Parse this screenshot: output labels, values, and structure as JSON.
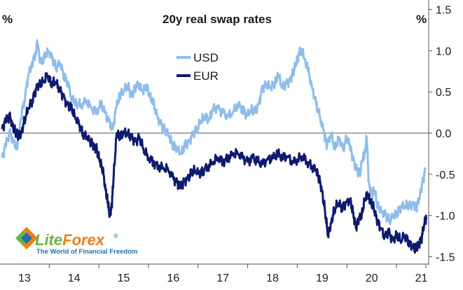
{
  "chart_data": {
    "type": "line",
    "title": "20y real swap rates",
    "y_unit_left": "%",
    "y_unit_right": "%",
    "ylim": [
      -1.55,
      1.55
    ],
    "y_ticks": [
      1.5,
      1.0,
      0.5,
      0.0,
      -0.5,
      -1.0,
      -1.5
    ],
    "y_tick_labels": [
      "1.5",
      "1.0",
      "0.5",
      "0.0",
      "-0.5",
      "-1.0",
      "-1.5"
    ],
    "x_range": [
      2012.55,
      2021.12
    ],
    "x_ticks": [
      2013,
      2014,
      2015,
      2016,
      2017,
      2018,
      2019,
      2020,
      2021
    ],
    "x_tick_labels": [
      "13",
      "14",
      "15",
      "16",
      "17",
      "18",
      "19",
      "20",
      "21"
    ],
    "zero_line": true,
    "legend": {
      "position": "top-center",
      "entries": [
        "USD",
        "EUR"
      ]
    },
    "series": [
      {
        "name": "USD",
        "color": "#8fbdeb",
        "points": [
          [
            2012.55,
            -0.3
          ],
          [
            2012.62,
            -0.15
          ],
          [
            2012.7,
            0.0
          ],
          [
            2012.78,
            -0.1
          ],
          [
            2012.85,
            -0.2
          ],
          [
            2012.92,
            0.15
          ],
          [
            2013.0,
            0.4
          ],
          [
            2013.08,
            0.7
          ],
          [
            2013.15,
            0.85
          ],
          [
            2013.22,
            0.95
          ],
          [
            2013.26,
            1.1
          ],
          [
            2013.32,
            0.85
          ],
          [
            2013.4,
            0.9
          ],
          [
            2013.48,
            1.0
          ],
          [
            2013.56,
            0.9
          ],
          [
            2013.64,
            0.8
          ],
          [
            2013.72,
            0.85
          ],
          [
            2013.8,
            0.7
          ],
          [
            2013.88,
            0.6
          ],
          [
            2013.96,
            0.4
          ],
          [
            2014.05,
            0.35
          ],
          [
            2014.15,
            0.35
          ],
          [
            2014.25,
            0.4
          ],
          [
            2014.35,
            0.3
          ],
          [
            2014.45,
            0.25
          ],
          [
            2014.55,
            0.35
          ],
          [
            2014.62,
            0.25
          ],
          [
            2014.7,
            0.15
          ],
          [
            2014.78,
            0.05
          ],
          [
            2014.85,
            0.3
          ],
          [
            2014.92,
            0.45
          ],
          [
            2015.0,
            0.5
          ],
          [
            2015.08,
            0.58
          ],
          [
            2015.16,
            0.45
          ],
          [
            2015.22,
            0.55
          ],
          [
            2015.3,
            0.6
          ],
          [
            2015.38,
            0.5
          ],
          [
            2015.46,
            0.58
          ],
          [
            2015.52,
            0.45
          ],
          [
            2015.6,
            0.35
          ],
          [
            2015.68,
            0.2
          ],
          [
            2015.76,
            0.1
          ],
          [
            2015.84,
            0.05
          ],
          [
            2015.92,
            -0.05
          ],
          [
            2016.0,
            -0.15
          ],
          [
            2016.08,
            -0.2
          ],
          [
            2016.16,
            -0.25
          ],
          [
            2016.24,
            -0.15
          ],
          [
            2016.32,
            -0.1
          ],
          [
            2016.4,
            0.0
          ],
          [
            2016.48,
            0.05
          ],
          [
            2016.56,
            0.15
          ],
          [
            2016.64,
            0.2
          ],
          [
            2016.72,
            0.15
          ],
          [
            2016.8,
            0.3
          ],
          [
            2016.9,
            0.3
          ],
          [
            2017.0,
            0.25
          ],
          [
            2017.1,
            0.2
          ],
          [
            2017.2,
            0.25
          ],
          [
            2017.3,
            0.35
          ],
          [
            2017.4,
            0.3
          ],
          [
            2017.48,
            0.2
          ],
          [
            2017.56,
            0.28
          ],
          [
            2017.64,
            0.25
          ],
          [
            2017.72,
            0.35
          ],
          [
            2017.8,
            0.55
          ],
          [
            2017.88,
            0.6
          ],
          [
            2017.96,
            0.55
          ],
          [
            2018.05,
            0.6
          ],
          [
            2018.12,
            0.7
          ],
          [
            2018.2,
            0.55
          ],
          [
            2018.28,
            0.6
          ],
          [
            2018.36,
            0.65
          ],
          [
            2018.42,
            0.75
          ],
          [
            2018.48,
            0.85
          ],
          [
            2018.53,
            0.95
          ],
          [
            2018.58,
            1.02
          ],
          [
            2018.65,
            0.9
          ],
          [
            2018.72,
            0.75
          ],
          [
            2018.8,
            0.55
          ],
          [
            2018.88,
            0.35
          ],
          [
            2018.96,
            0.2
          ],
          [
            2019.04,
            0.0
          ],
          [
            2019.1,
            -0.15
          ],
          [
            2019.18,
            0.0
          ],
          [
            2019.26,
            -0.2
          ],
          [
            2019.34,
            -0.05
          ],
          [
            2019.42,
            -0.2
          ],
          [
            2019.5,
            -0.05
          ],
          [
            2019.56,
            -0.15
          ],
          [
            2019.62,
            -0.3
          ],
          [
            2019.7,
            -0.45
          ],
          [
            2019.76,
            -0.5
          ],
          [
            2019.82,
            -0.3
          ],
          [
            2019.86,
            -0.25
          ],
          [
            2019.9,
            -0.05
          ],
          [
            2019.94,
            -0.6
          ],
          [
            2020.0,
            -0.75
          ],
          [
            2020.06,
            -0.7
          ],
          [
            2020.12,
            -0.9
          ],
          [
            2020.2,
            -0.95
          ],
          [
            2020.28,
            -1.0
          ],
          [
            2020.36,
            -1.05
          ],
          [
            2020.44,
            -1.0
          ],
          [
            2020.52,
            -0.95
          ],
          [
            2020.6,
            -0.9
          ],
          [
            2020.68,
            -0.88
          ],
          [
            2020.76,
            -0.9
          ],
          [
            2020.84,
            -0.85
          ],
          [
            2020.9,
            -0.9
          ],
          [
            2020.96,
            -0.8
          ],
          [
            2021.02,
            -0.6
          ],
          [
            2021.08,
            -0.45
          ]
        ]
      },
      {
        "name": "EUR",
        "color": "#0d1a6e",
        "points": [
          [
            2012.55,
            0.05
          ],
          [
            2012.62,
            0.15
          ],
          [
            2012.7,
            0.2
          ],
          [
            2012.76,
            0.1
          ],
          [
            2012.82,
            0.0
          ],
          [
            2012.88,
            -0.05
          ],
          [
            2012.94,
            0.0
          ],
          [
            2013.0,
            0.15
          ],
          [
            2013.08,
            0.3
          ],
          [
            2013.16,
            0.4
          ],
          [
            2013.24,
            0.55
          ],
          [
            2013.3,
            0.6
          ],
          [
            2013.38,
            0.62
          ],
          [
            2013.46,
            0.7
          ],
          [
            2013.54,
            0.6
          ],
          [
            2013.62,
            0.62
          ],
          [
            2013.7,
            0.55
          ],
          [
            2013.78,
            0.45
          ],
          [
            2013.86,
            0.35
          ],
          [
            2013.94,
            0.3
          ],
          [
            2014.02,
            0.2
          ],
          [
            2014.1,
            0.1
          ],
          [
            2014.18,
            0.0
          ],
          [
            2014.26,
            -0.05
          ],
          [
            2014.34,
            -0.1
          ],
          [
            2014.4,
            -0.15
          ],
          [
            2014.46,
            -0.2
          ],
          [
            2014.52,
            -0.35
          ],
          [
            2014.58,
            -0.45
          ],
          [
            2014.64,
            -0.7
          ],
          [
            2014.68,
            -0.85
          ],
          [
            2014.72,
            -1.0
          ],
          [
            2014.76,
            -0.9
          ],
          [
            2014.8,
            -0.5
          ],
          [
            2014.86,
            0.0
          ],
          [
            2014.92,
            -0.05
          ],
          [
            2015.0,
            0.0
          ],
          [
            2015.08,
            0.0
          ],
          [
            2015.16,
            -0.05
          ],
          [
            2015.24,
            -0.1
          ],
          [
            2015.32,
            -0.05
          ],
          [
            2015.4,
            -0.2
          ],
          [
            2015.5,
            -0.3
          ],
          [
            2015.6,
            -0.35
          ],
          [
            2015.7,
            -0.4
          ],
          [
            2015.8,
            -0.42
          ],
          [
            2015.9,
            -0.45
          ],
          [
            2016.0,
            -0.55
          ],
          [
            2016.08,
            -0.6
          ],
          [
            2016.14,
            -0.65
          ],
          [
            2016.2,
            -0.6
          ],
          [
            2016.28,
            -0.55
          ],
          [
            2016.36,
            -0.5
          ],
          [
            2016.44,
            -0.45
          ],
          [
            2016.52,
            -0.5
          ],
          [
            2016.6,
            -0.45
          ],
          [
            2016.7,
            -0.4
          ],
          [
            2016.8,
            -0.35
          ],
          [
            2016.9,
            -0.3
          ],
          [
            2017.0,
            -0.35
          ],
          [
            2017.1,
            -0.3
          ],
          [
            2017.2,
            -0.25
          ],
          [
            2017.3,
            -0.25
          ],
          [
            2017.4,
            -0.3
          ],
          [
            2017.5,
            -0.35
          ],
          [
            2017.6,
            -0.3
          ],
          [
            2017.7,
            -0.35
          ],
          [
            2017.8,
            -0.38
          ],
          [
            2017.9,
            -0.32
          ],
          [
            2018.0,
            -0.3
          ],
          [
            2018.1,
            -0.25
          ],
          [
            2018.2,
            -0.3
          ],
          [
            2018.3,
            -0.28
          ],
          [
            2018.4,
            -0.35
          ],
          [
            2018.5,
            -0.32
          ],
          [
            2018.6,
            -0.28
          ],
          [
            2018.7,
            -0.35
          ],
          [
            2018.8,
            -0.4
          ],
          [
            2018.88,
            -0.45
          ],
          [
            2018.94,
            -0.55
          ],
          [
            2019.0,
            -0.7
          ],
          [
            2019.06,
            -0.95
          ],
          [
            2019.12,
            -1.25
          ],
          [
            2019.18,
            -1.1
          ],
          [
            2019.24,
            -0.95
          ],
          [
            2019.32,
            -0.85
          ],
          [
            2019.4,
            -0.9
          ],
          [
            2019.48,
            -0.85
          ],
          [
            2019.56,
            -0.8
          ],
          [
            2019.62,
            -0.95
          ],
          [
            2019.68,
            -1.15
          ],
          [
            2019.74,
            -1.05
          ],
          [
            2019.8,
            -1.0
          ],
          [
            2019.86,
            -0.8
          ],
          [
            2019.92,
            -0.75
          ],
          [
            2019.98,
            -0.85
          ],
          [
            2020.04,
            -0.9
          ],
          [
            2020.1,
            -1.05
          ],
          [
            2020.18,
            -1.15
          ],
          [
            2020.26,
            -1.25
          ],
          [
            2020.34,
            -1.2
          ],
          [
            2020.42,
            -1.3
          ],
          [
            2020.5,
            -1.25
          ],
          [
            2020.58,
            -1.3
          ],
          [
            2020.66,
            -1.25
          ],
          [
            2020.74,
            -1.3
          ],
          [
            2020.82,
            -1.38
          ],
          [
            2020.88,
            -1.4
          ],
          [
            2020.94,
            -1.35
          ],
          [
            2021.0,
            -1.3
          ],
          [
            2021.06,
            -1.1
          ],
          [
            2021.1,
            -1.05
          ]
        ]
      }
    ]
  },
  "watermark": {
    "name_part1": "Lite",
    "name_part2": "Forex",
    "registered": "®",
    "tagline": "The World of Financial Freedom",
    "color_green": "#6ab43e",
    "color_orange": "#f07d1a",
    "color_blue": "#1f6fb5"
  }
}
